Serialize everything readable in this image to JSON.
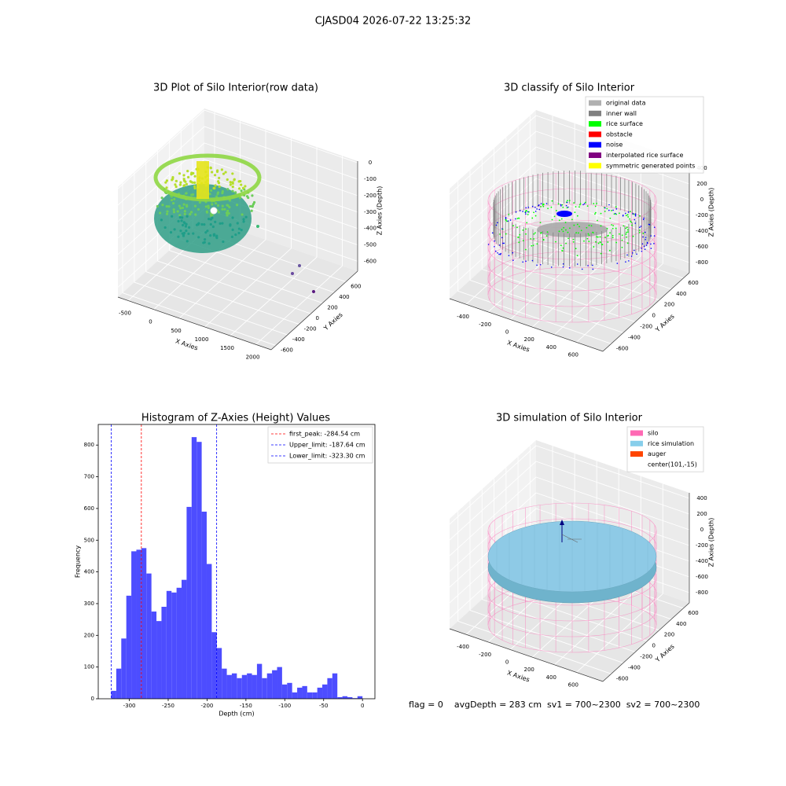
{
  "title": "CJASD04 2026-07-22 13:25:32",
  "footer": "flag = 0    avgDepth = 283 cm  sv1 = 700~2300  sv2 = 700~2300",
  "chart_data": [
    {
      "type": "scatter3d",
      "title": "3D Plot of Silo Interior(row data)",
      "xlabel": "X Axies",
      "ylabel": "Y Axies",
      "zlabel": "Z Axies (Depth)",
      "xlim": [
        -700,
        2300
      ],
      "ylim": [
        -680,
        800
      ],
      "zlim": [
        -660,
        10
      ],
      "xticks": [
        -500,
        0,
        500,
        1000,
        1500,
        2000
      ],
      "yticks": [
        -600,
        -400,
        -200,
        0,
        200,
        400,
        600
      ],
      "zticks": [
        -600,
        -500,
        -400,
        -300,
        -200,
        -100,
        0
      ]
    },
    {
      "type": "scatter3d",
      "title": "3D classify of Silo Interior",
      "xlabel": "X Axies",
      "ylabel": "Y Axies",
      "zlabel": "Z Axies (Depth)",
      "xlim": [
        -550,
        840
      ],
      "ylim": [
        -740,
        700
      ],
      "zlim": [
        -930,
        470
      ],
      "xticks": [
        -400,
        -200,
        0,
        200,
        400,
        600
      ],
      "yticks": [
        -600,
        -400,
        -200,
        0,
        200,
        400,
        600
      ],
      "zticks": [
        -800,
        -600,
        -400,
        -200,
        0,
        200,
        400
      ],
      "legend_loc": "upper right",
      "legend": [
        {
          "name": "original data",
          "color": "#b0b0b0"
        },
        {
          "name": "inner wall",
          "color": "#808080"
        },
        {
          "name": "rice surface",
          "color": "#00ff00"
        },
        {
          "name": "obstacle",
          "color": "#ff0000"
        },
        {
          "name": "noise",
          "color": "#0000ff"
        },
        {
          "name": "interpolated rice surface",
          "color": "#800080"
        },
        {
          "name": "symmetric generated points",
          "color": "#ffff00"
        }
      ]
    },
    {
      "type": "histogram",
      "title": "Histogram of Z-Axies (Height) Values",
      "xlabel": "Depth (cm)",
      "ylabel": "Frequency",
      "color": "#4d4dff",
      "bins": [
        -323.3,
        -316.83,
        -310.37,
        -303.9,
        -297.44,
        -290.97,
        -284.5,
        -278.04,
        -271.57,
        -265.11,
        -258.64,
        -252.17,
        -245.71,
        -239.24,
        -232.78,
        -226.31,
        -219.84,
        -213.38,
        -206.91,
        -200.45,
        -193.98,
        -187.51,
        -181.05,
        -174.58,
        -168.12,
        -161.65,
        -155.18,
        -148.72,
        -142.25,
        -135.79,
        -129.32,
        -122.85,
        -116.39,
        -109.92,
        -103.46,
        -96.99,
        -90.52,
        -84.06,
        -77.59,
        -71.13,
        -64.66,
        -58.19,
        -51.73,
        -45.26,
        -38.8,
        -32.33,
        -25.86,
        -19.4,
        -12.93,
        -6.47,
        0
      ],
      "values": [
        25,
        95,
        190,
        325,
        465,
        470,
        475,
        395,
        275,
        245,
        290,
        340,
        335,
        350,
        375,
        605,
        825,
        810,
        590,
        425,
        210,
        160,
        95,
        75,
        80,
        65,
        75,
        80,
        75,
        110,
        65,
        80,
        90,
        100,
        45,
        50,
        20,
        35,
        40,
        20,
        20,
        35,
        45,
        65,
        80,
        5,
        8,
        5,
        2,
        8
      ],
      "xlim": [
        -340,
        16
      ],
      "ylim": [
        0,
        865
      ],
      "xticks": [
        -300,
        -250,
        -200,
        -150,
        -100,
        -50,
        0
      ],
      "yticks": [
        0,
        100,
        200,
        300,
        400,
        500,
        600,
        700,
        800
      ],
      "legend_loc": "upper right",
      "lines": [
        {
          "value": -284.54,
          "label": "first_peak: -284.54 cm",
          "color": "#ff0000"
        },
        {
          "value": -187.64,
          "label": "Upper_limit: -187.64 cm",
          "color": "#0000ff"
        },
        {
          "value": -323.3,
          "label": "Lower_limit: -323.30 cm",
          "color": "#0000ff"
        }
      ]
    },
    {
      "type": "scatter3d",
      "title": "3D simulation of Silo Interior",
      "xlabel": "X Axies",
      "ylabel": "Y Axies",
      "zlabel": "Z Axies (Depth)",
      "xlim": [
        -550,
        840
      ],
      "ylim": [
        -740,
        700
      ],
      "zlim": [
        -930,
        470
      ],
      "xticks": [
        -400,
        -200,
        0,
        200,
        400,
        600
      ],
      "yticks": [
        -600,
        -400,
        -200,
        0,
        200,
        400,
        600
      ],
      "zticks": [
        -800,
        -600,
        -400,
        -200,
        0,
        200,
        400
      ],
      "legend_loc": "upper right",
      "legend": [
        {
          "name": "silo",
          "color": "#ff69b4"
        },
        {
          "name": "rice simulation",
          "color": "#87ceeb"
        },
        {
          "name": "auger",
          "color": "#ff4500"
        },
        {
          "name": "center(101,-15)"
        }
      ]
    }
  ]
}
